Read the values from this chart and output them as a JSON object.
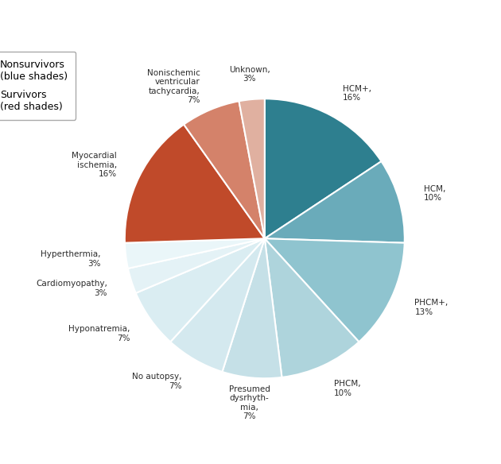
{
  "segments": [
    {
      "label": "HCM+,\n16%",
      "pct": 16,
      "color": "#2e7f8f"
    },
    {
      "label": "HCM,\n10%",
      "pct": 10,
      "color": "#6aabba"
    },
    {
      "label": "PHCM+,\n13%",
      "pct": 13,
      "color": "#8fc4cf"
    },
    {
      "label": "PHCM,\n10%",
      "pct": 10,
      "color": "#aed4dc"
    },
    {
      "label": "Presumed\ndysrhyth-\nmia,\n7%",
      "pct": 7,
      "color": "#c5e0e7"
    },
    {
      "label": "No autopsy,\n7%",
      "pct": 7,
      "color": "#d4e9ef"
    },
    {
      "label": "Hyponatremia,\n7%",
      "pct": 7,
      "color": "#daedf2"
    },
    {
      "label": "Cardiomyopathy,\n3%",
      "pct": 3,
      "color": "#e4f2f6"
    },
    {
      "label": "Hyperthermia,\n3%",
      "pct": 3,
      "color": "#eaf6f9"
    },
    {
      "label": "Myocardial\nischemia,\n16%",
      "pct": 16,
      "color": "#c04a2a"
    },
    {
      "label": "Nonischemic\nventricular\ntachycardia,\n7%",
      "pct": 7,
      "color": "#d4826a"
    },
    {
      "label": "Unknown,\n3%",
      "pct": 3,
      "color": "#e0b0a0"
    }
  ],
  "legend_nonsurvivor_color": "#2e7f8f",
  "legend_survivor_color": "#c04a2a",
  "legend_nonsurvivor_label": "Nonsurvivors\n(blue shades)",
  "legend_survivor_label": "Survivors\n(red shades)",
  "start_angle": 90,
  "bg_color": "#ffffff"
}
